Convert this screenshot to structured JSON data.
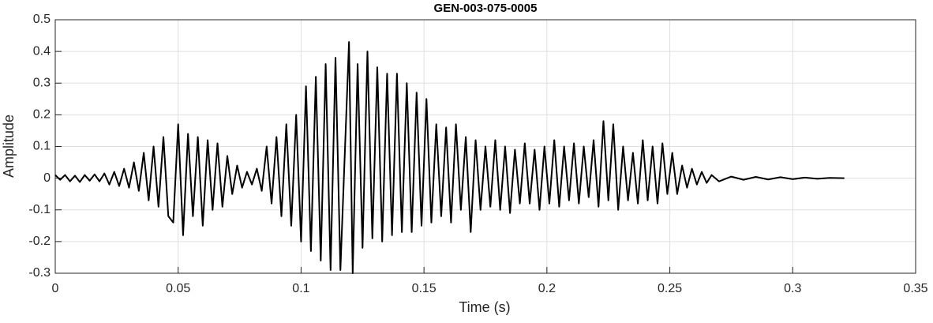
{
  "chart_data": {
    "type": "line",
    "title": "GEN-003-075-0005",
    "x_label": "Time (s)",
    "y_label": "Amplitude",
    "xlim": [
      0,
      0.35
    ],
    "xticks": [
      0,
      0.05,
      0.1,
      0.15,
      0.2,
      0.25,
      0.3,
      0.35
    ],
    "ylim": [
      -0.3,
      0.5
    ],
    "yticks": [
      -0.3,
      -0.2,
      -0.1,
      0,
      0.1,
      0.2,
      0.3,
      0.4,
      0.5
    ],
    "grid": true,
    "x": [
      0,
      0.002,
      0.004,
      0.006,
      0.008,
      0.01,
      0.012,
      0.014,
      0.016,
      0.018,
      0.02,
      0.022,
      0.024,
      0.026,
      0.028,
      0.03,
      0.032,
      0.034,
      0.036,
      0.038,
      0.04,
      0.042,
      0.044,
      0.046,
      0.048,
      0.05,
      0.052,
      0.054,
      0.056,
      0.058,
      0.06,
      0.062,
      0.064,
      0.066,
      0.068,
      0.07,
      0.072,
      0.074,
      0.076,
      0.078,
      0.08,
      0.082,
      0.084,
      0.086,
      0.088,
      0.09,
      0.092,
      0.094,
      0.096,
      0.098,
      0.1,
      0.102,
      0.104,
      0.106,
      0.108,
      0.11,
      0.112,
      0.114,
      0.116,
      0.1195,
      0.121,
      0.123,
      0.125,
      0.127,
      0.129,
      0.131,
      0.133,
      0.135,
      0.137,
      0.139,
      0.141,
      0.143,
      0.145,
      0.147,
      0.149,
      0.151,
      0.153,
      0.155,
      0.157,
      0.159,
      0.161,
      0.163,
      0.165,
      0.167,
      0.169,
      0.171,
      0.173,
      0.175,
      0.177,
      0.179,
      0.181,
      0.183,
      0.185,
      0.187,
      0.189,
      0.191,
      0.193,
      0.195,
      0.197,
      0.199,
      0.201,
      0.203,
      0.205,
      0.207,
      0.209,
      0.211,
      0.213,
      0.215,
      0.217,
      0.219,
      0.221,
      0.223,
      0.225,
      0.227,
      0.229,
      0.231,
      0.233,
      0.235,
      0.237,
      0.239,
      0.241,
      0.243,
      0.245,
      0.247,
      0.249,
      0.251,
      0.253,
      0.255,
      0.257,
      0.259,
      0.261,
      0.263,
      0.265,
      0.267,
      0.27,
      0.275,
      0.28,
      0.285,
      0.29,
      0.295,
      0.3,
      0.305,
      0.31,
      0.315,
      0.321
    ],
    "series": [
      {
        "color": "#000000",
        "values": [
          0.01,
          -0.005,
          0.01,
          -0.01,
          0.008,
          -0.012,
          0.01,
          -0.008,
          0.012,
          -0.01,
          0.015,
          -0.02,
          0.02,
          -0.025,
          0.03,
          -0.03,
          0.05,
          -0.04,
          0.08,
          -0.07,
          0.1,
          -0.09,
          0.13,
          -0.12,
          -0.14,
          0.17,
          -0.18,
          0.14,
          -0.12,
          0.13,
          -0.15,
          0.12,
          -0.1,
          0.11,
          -0.09,
          0.07,
          -0.05,
          0.04,
          -0.03,
          0.02,
          -0.02,
          0.03,
          -0.04,
          0.1,
          -0.08,
          0.13,
          -0.12,
          0.17,
          -0.15,
          0.2,
          -0.2,
          0.29,
          -0.23,
          0.32,
          -0.26,
          0.36,
          -0.29,
          0.38,
          -0.29,
          0.43,
          -0.3,
          0.36,
          -0.22,
          0.4,
          -0.19,
          0.35,
          -0.2,
          0.33,
          -0.18,
          0.33,
          -0.17,
          0.3,
          -0.17,
          0.27,
          -0.15,
          0.25,
          -0.14,
          0.17,
          -0.12,
          0.16,
          -0.14,
          0.17,
          -0.1,
          0.13,
          -0.17,
          0.12,
          -0.1,
          0.1,
          -0.09,
          0.12,
          -0.1,
          0.1,
          -0.11,
          0.09,
          -0.08,
          0.11,
          -0.08,
          0.09,
          -0.1,
          0.1,
          -0.08,
          0.12,
          -0.09,
          0.1,
          -0.07,
          0.11,
          -0.08,
          0.1,
          -0.06,
          0.12,
          -0.09,
          0.18,
          -0.07,
          0.17,
          -0.1,
          0.1,
          -0.07,
          0.08,
          -0.08,
          0.12,
          -0.07,
          0.1,
          -0.08,
          0.11,
          -0.05,
          0.08,
          -0.05,
          0.04,
          -0.03,
          0.03,
          -0.02,
          0.02,
          -0.015,
          0.01,
          -0.01,
          0.005,
          -0.005,
          0.004,
          -0.004,
          0.003,
          -0.003,
          0.002,
          -0.002,
          0.001,
          0
        ]
      }
    ]
  }
}
